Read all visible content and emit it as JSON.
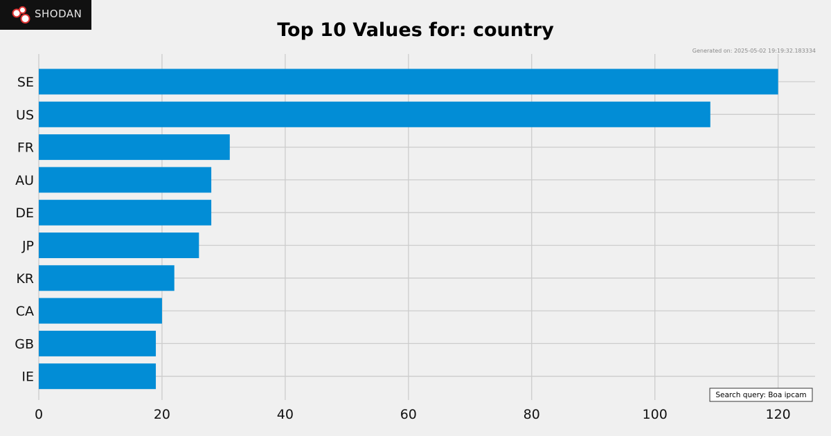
{
  "logo": {
    "text": "SHODAN"
  },
  "generated": "Generated on: 2025-05-02 19:19:32.183334",
  "search_query": "Search query: Boa ipcam",
  "colors": {
    "bar": "#028dd6",
    "grid": "#cccccc",
    "background": "#f0f0f0"
  },
  "chart_data": {
    "type": "bar",
    "orientation": "horizontal",
    "title": "Top 10 Values for: country",
    "categories": [
      "SE",
      "US",
      "FR",
      "AU",
      "DE",
      "JP",
      "KR",
      "CA",
      "GB",
      "IE"
    ],
    "values": [
      120,
      109,
      31,
      28,
      28,
      26,
      22,
      20,
      19,
      19
    ],
    "xlim": [
      0,
      126
    ],
    "xticks": [
      0,
      20,
      40,
      60,
      80,
      100,
      120
    ],
    "grid": true
  }
}
